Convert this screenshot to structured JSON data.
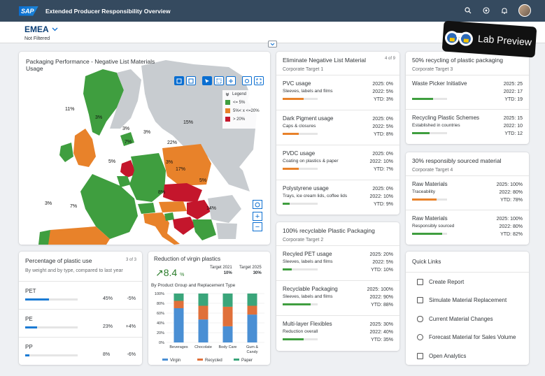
{
  "shell": {
    "logo": "SAP",
    "title": "Extended Producer Responsibility Overview"
  },
  "header": {
    "variant": "EMEA",
    "filter_state": "Not Filtered"
  },
  "badge": {
    "label": "Lab Preview"
  },
  "map_card": {
    "title": "Packaging Performance - Negative List Materials Usage",
    "legend_title": "Legend",
    "legend": [
      {
        "label": "<= 5%",
        "color": "#3f9e3f"
      },
      {
        "label": "5%< x <=20%",
        "color": "#e8822a"
      },
      {
        "label": "> 20%",
        "color": "#c4162c"
      }
    ],
    "labels": [
      "11%",
      "3%",
      "3%",
      "7%",
      "3%",
      "15%",
      "22%",
      "5%",
      "17%",
      "5%",
      "3%",
      "8%",
      "7%",
      "14%",
      "3%"
    ]
  },
  "neg_card": {
    "title": "Eliminate Negative List Material",
    "subtitle": "Corporate Target 1",
    "counter": "4 of 9",
    "items": [
      {
        "title": "PVC usage",
        "desc": "Sleeves, labels and films",
        "v1": "2025: 0%",
        "v2": "2022: 5%",
        "v3": "YTD: 3%",
        "progress": 0.6,
        "color": "#e8822a"
      },
      {
        "title": "Dark Pigment usage",
        "desc": "Caps & closures",
        "v1": "2025: 0%",
        "v2": "2022: 5%",
        "v3": "YTD: 8%",
        "progress": 0.45,
        "color": "#e8822a"
      },
      {
        "title": "PVDC usage",
        "desc": "Coating on plastics & paper",
        "v1": "2025: 0%",
        "v2": "2022: 10%",
        "v3": "YTD: 7%",
        "progress": 0.45,
        "color": "#e8822a"
      },
      {
        "title": "Polystyrene usage",
        "desc": "Trays, ice cream lids, coffee lids",
        "v1": "2025: 0%",
        "v2": "2022: 10%",
        "v3": "YTD: 9%",
        "progress": 0.2,
        "color": "#3f9e3f"
      }
    ]
  },
  "recy_card": {
    "title": "100% recyclable Plastic Packaging",
    "subtitle": "Corporate Target 2",
    "items": [
      {
        "title": "Recyled PET usage",
        "desc": "Sleeves, labels and films",
        "v1": "2025: 20%",
        "v2": "2022: 5%",
        "v3": "YTD: 10%",
        "progress": 0.25,
        "color": "#3f9e3f"
      },
      {
        "title": "Recyclable Packaging",
        "desc": "Sleeves, labels and films",
        "v1": "2025: 100%",
        "v2": "2022: 90%",
        "v3": "YTD: 88%",
        "progress": 0.8,
        "color": "#3f9e3f"
      },
      {
        "title": "Multi-layer Flexibles",
        "desc": "Reduction overall",
        "v1": "2025: 30%",
        "v2": "2022: 40%",
        "v3": "YTD: 35%",
        "progress": 0.6,
        "color": "#3f9e3f"
      }
    ]
  },
  "card_50": {
    "title": "50% recycling of plastic packaging",
    "subtitle": "Corporate Target 3",
    "items": [
      {
        "title": "Waste Picker Initiative",
        "desc": "",
        "v1": "2025: 25",
        "v2": "2022: 17",
        "v3": "YTD: 19",
        "progress": 0.6,
        "color": "#3f9e3f"
      },
      {
        "title": "Recycling Plastic Schemes",
        "desc": "Established in countries",
        "v1": "2025: 15",
        "v2": "2022: 10",
        "v3": "YTD: 12",
        "progress": 0.5,
        "color": "#3f9e3f"
      }
    ]
  },
  "card_30": {
    "title": "30% responsibly sourced material",
    "subtitle": "Corporate Target 4",
    "items": [
      {
        "title": "Raw Materials",
        "desc": "Traceability",
        "v1": "2025: 100%",
        "v2": "2022: 80%",
        "v3": "YTD: 78%",
        "progress": 0.7,
        "color": "#e8822a"
      },
      {
        "title": "Raw Materials",
        "desc": "Responsibly sourced",
        "v1": "2025: 100%",
        "v2": "2022: 80%",
        "v3": "YTD: 82%",
        "progress": 0.85,
        "color": "#3f9e3f"
      }
    ]
  },
  "plastic_card": {
    "title": "Percentage of plastic use",
    "subtitle": "By weight and by type, compared to last year",
    "counter": "3 of 3",
    "rows": [
      {
        "label": "PET",
        "share": "45%",
        "delta": "-5%",
        "progress": 0.45
      },
      {
        "label": "PE",
        "share": "23%",
        "delta": "+4%",
        "progress": 0.23
      },
      {
        "label": "PP",
        "share": "8%",
        "delta": "-6%",
        "progress": 0.08
      }
    ]
  },
  "virgin_card": {
    "title": "Reduction of virgin plastics",
    "kpi_value": "8.4",
    "kpi_unit": "%",
    "target_2021_label": "Target 2021",
    "target_2021_value": "10%",
    "target_2025_label": "Target 2025",
    "target_2025_value": "30%",
    "chart_title": "By Product Group and Replacement Type"
  },
  "chart_data": {
    "type": "bar",
    "stacked": true,
    "categories": [
      "Beverages",
      "Chocolate",
      "Body Care",
      "Gum & Candy"
    ],
    "series": [
      {
        "name": "Virgin",
        "color": "#4a8fd4",
        "values": [
          70,
          47,
          33,
          57
        ]
      },
      {
        "name": "Recycled",
        "color": "#e0703a",
        "values": [
          15,
          28,
          40,
          18
        ]
      },
      {
        "name": "Paper",
        "color": "#3aa57a",
        "values": [
          15,
          25,
          27,
          25
        ]
      }
    ],
    "ylim": [
      0,
      100
    ],
    "yticks": [
      "0%",
      "20%",
      "40%",
      "60%",
      "80%",
      "100%"
    ],
    "legend_position": "bottom"
  },
  "links_card": {
    "title": "Quick Links",
    "items": [
      "Create Report",
      "Simulate Material Replacement",
      "Current Material Changes",
      "Forecast Material for Sales Volume",
      "Open Analytics"
    ]
  }
}
